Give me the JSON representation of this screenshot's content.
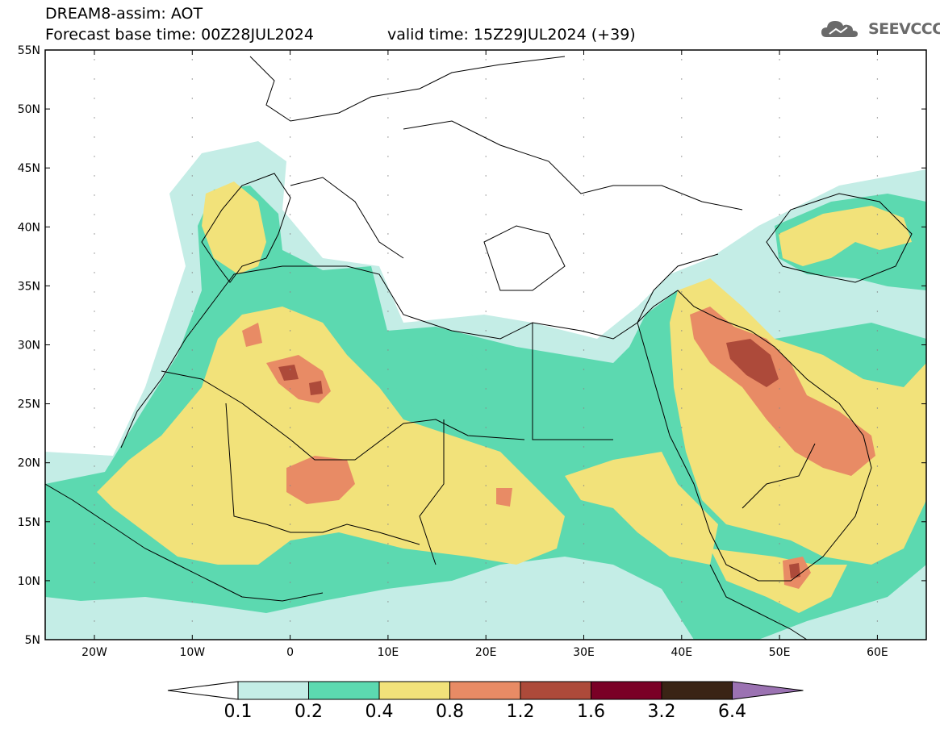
{
  "title": {
    "line1": "DREAM8-assim: AOT",
    "base_time": "Forecast base time: 00Z28JUL2024",
    "valid_time": "valid time: 15Z29JUL2024 (+39)"
  },
  "logo": {
    "text": "SEEVCCC",
    "icon": "cloud-icon"
  },
  "axes": {
    "lat_labels": [
      "55N",
      "50N",
      "45N",
      "40N",
      "35N",
      "30N",
      "25N",
      "20N",
      "15N",
      "10N",
      "5N"
    ],
    "lon_labels": [
      "20W",
      "10W",
      "0",
      "10E",
      "20E",
      "30E",
      "40E",
      "50E",
      "60E"
    ]
  },
  "colorbar": {
    "colors": [
      "#ffffff",
      "#c4ede6",
      "#5cd9b0",
      "#f2e27a",
      "#e88b65",
      "#ad4a3a",
      "#7a0026",
      "#3a2415",
      "#9b72b2"
    ],
    "labels": [
      "0.1",
      "0.2",
      "0.4",
      "0.8",
      "1.2",
      "1.6",
      "3.2",
      "6.4"
    ]
  },
  "layers": {
    "l1": "#c4ede6",
    "l2": "#5cd9b0",
    "l3": "#f2e27a",
    "l4": "#e88b65",
    "l5": "#ad4a3a"
  }
}
